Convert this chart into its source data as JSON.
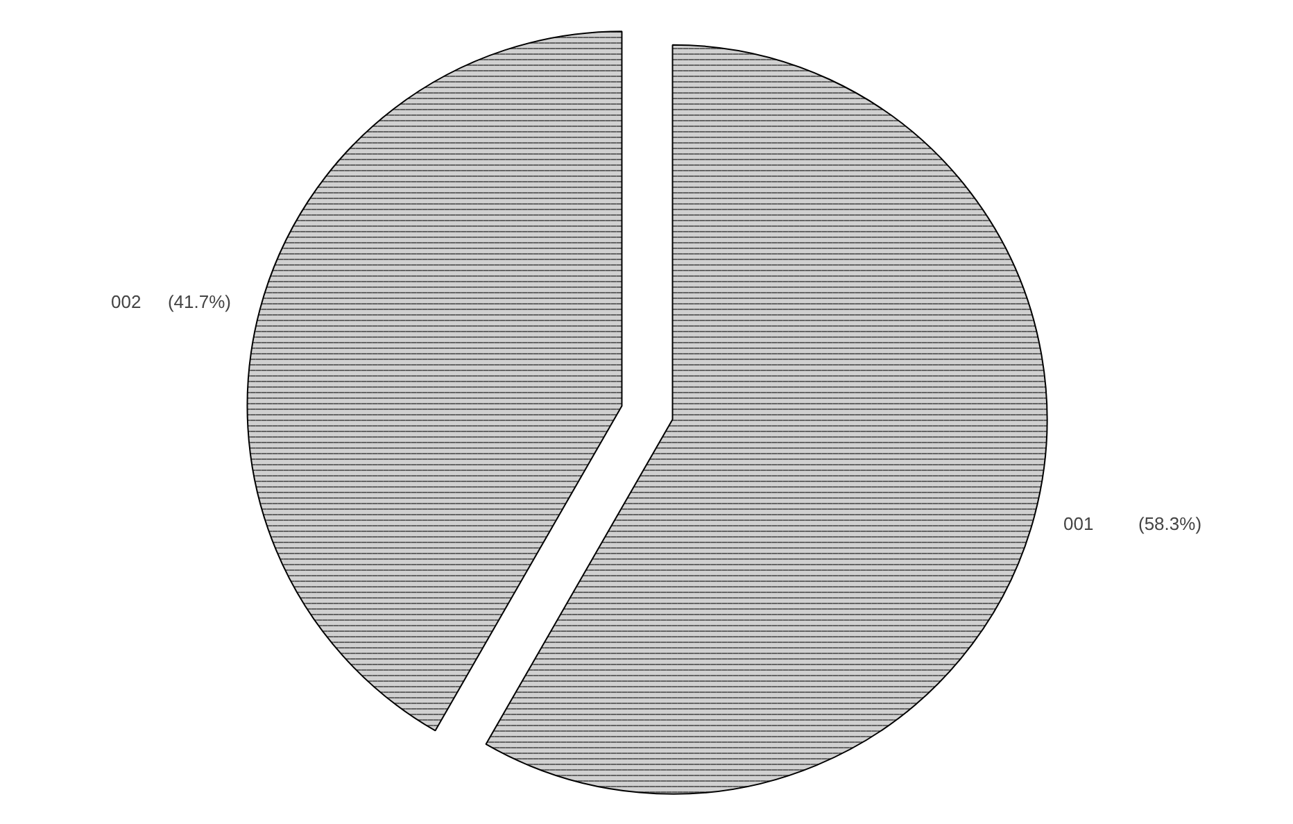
{
  "chart_data": {
    "type": "pie",
    "categories": [
      "001",
      "002"
    ],
    "values": [
      58.3,
      41.7
    ],
    "colors": [
      "#d0d0d0",
      "#d0d0d0"
    ],
    "value_labels": [
      "(58.3%)",
      "(41.7%)"
    ]
  }
}
